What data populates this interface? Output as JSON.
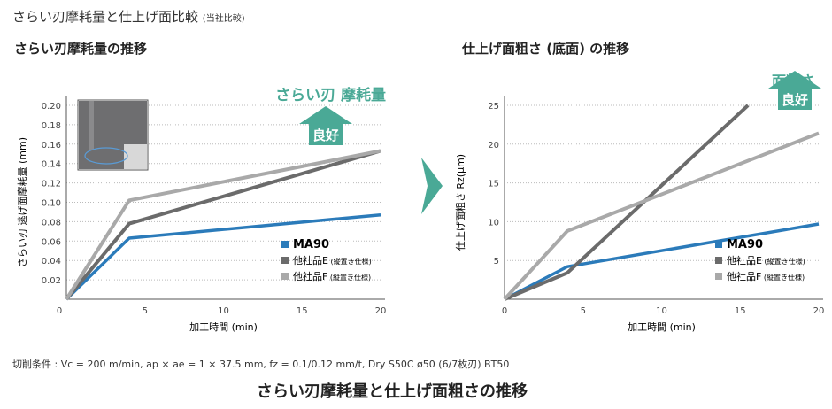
{
  "header": {
    "title": "さらい刃摩耗量と仕上げ面比較",
    "title_note": "(当社比較)"
  },
  "footer": {
    "conditions": "切削条件 : Vc = 200 m/min, ap × ae = 1 × 37.5 mm, fz = 0.1/0.12 mm/t, Dry  S50C  ø50 (6/7枚刃)  BT50",
    "caption": "さらい刃摩耗量と仕上げ面粗さの推移"
  },
  "colors": {
    "MA90": "#2b7bba",
    "E": "#6b6b6b",
    "F": "#a9a9a9",
    "accent": "#4aa996"
  },
  "chart_data": [
    {
      "type": "line",
      "title": "さらい刃摩耗量の推移",
      "xlabel": "加工時間 (min)",
      "ylabel": "さらい刃 逃げ面摩耗量 (mm)",
      "xlim": [
        0,
        20
      ],
      "ylim": [
        0,
        0.2
      ],
      "xticks": [
        "0",
        "5",
        "10",
        "15",
        "20"
      ],
      "yticks": [
        "0.02",
        "0.04",
        "0.06",
        "0.08",
        "0.10",
        "0.12",
        "0.14",
        "0.16",
        "0.18",
        "0.20"
      ],
      "grid": true,
      "legend": "bottom-right",
      "badge": {
        "label": "さらい刃 摩耗量",
        "arrow_text": "良好"
      },
      "series": [
        {
          "name": "MA90",
          "note": "",
          "color": "#2b7bba",
          "x": [
            0,
            4,
            20
          ],
          "y": [
            0,
            0.063,
            0.087
          ]
        },
        {
          "name": "他社品E",
          "note": "(縦置き仕様)",
          "color": "#6b6b6b",
          "x": [
            0,
            4,
            20
          ],
          "y": [
            0,
            0.078,
            0.153
          ]
        },
        {
          "name": "他社品F",
          "note": "(縦置き仕様)",
          "color": "#a9a9a9",
          "x": [
            0,
            4,
            20
          ],
          "y": [
            0,
            0.102,
            0.153
          ]
        }
      ]
    },
    {
      "type": "line",
      "title": "仕上げ面粗さ (底面) の推移",
      "xlabel": "加工時間 (min)",
      "ylabel": "仕上げ面粗さ Rz(μm)",
      "xlim": [
        0,
        20
      ],
      "ylim": [
        0,
        25
      ],
      "xticks": [
        "0",
        "5",
        "10",
        "15",
        "20"
      ],
      "yticks": [
        "5",
        "10",
        "15",
        "20",
        "25"
      ],
      "grid": true,
      "legend": "bottom-right",
      "badge": {
        "label": "面粗さ",
        "arrow_text": "良好"
      },
      "series": [
        {
          "name": "MA90",
          "note": "",
          "color": "#2b7bba",
          "x": [
            0,
            4,
            20
          ],
          "y": [
            0,
            4.2,
            9.7
          ]
        },
        {
          "name": "他社品E",
          "note": "(縦置き仕様)",
          "color": "#6b6b6b",
          "x": [
            0,
            4,
            15.5
          ],
          "y": [
            0,
            3.4,
            25
          ]
        },
        {
          "name": "他社品F",
          "note": "(縦置き仕様)",
          "color": "#a9a9a9",
          "x": [
            0,
            4,
            20
          ],
          "y": [
            0,
            8.8,
            21.4
          ]
        }
      ]
    }
  ]
}
